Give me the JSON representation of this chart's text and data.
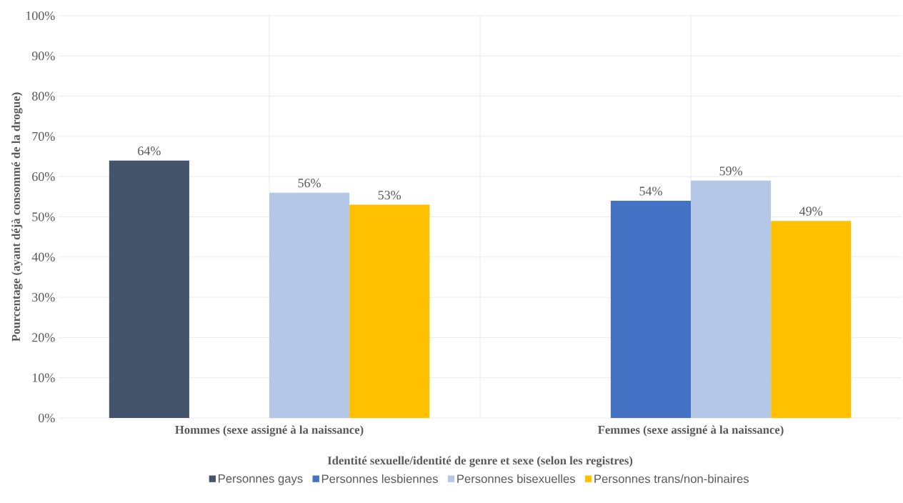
{
  "chart_data": {
    "type": "bar",
    "xlabel": "Identité sexuelle/identité de genre et sexe (selon les registres)",
    "ylabel": "Pourcentage (ayant déjà consommé de la drogue)",
    "categories": [
      "Hommes (sexe assigné à la naissance)",
      "Femmes (sexe assigné à la naissance)"
    ],
    "series": [
      {
        "name": "Personnes gays",
        "color": "#44546a",
        "values": [
          64,
          null
        ],
        "value_labels": [
          "64%",
          null
        ]
      },
      {
        "name": "Personnes lesbiennes",
        "color": "#4472c4",
        "values": [
          null,
          54
        ],
        "value_labels": [
          null,
          "54%"
        ]
      },
      {
        "name": "Personnes bisexuelles",
        "color": "#b4c7e7",
        "values": [
          56,
          59
        ],
        "value_labels": [
          "56%",
          "59%"
        ]
      },
      {
        "name": "Personnes trans/non-binaires",
        "color": "#ffc000",
        "values": [
          53,
          49
        ],
        "value_labels": [
          "53%",
          "49%"
        ]
      }
    ],
    "ylim": [
      0,
      100
    ],
    "yticks": [
      {
        "value": 0,
        "label": "0%"
      },
      {
        "value": 10,
        "label": "10%"
      },
      {
        "value": 20,
        "label": "20%"
      },
      {
        "value": 30,
        "label": "30%"
      },
      {
        "value": 40,
        "label": "40%"
      },
      {
        "value": 50,
        "label": "50%"
      },
      {
        "value": 60,
        "label": "60%"
      },
      {
        "value": 70,
        "label": "70%"
      },
      {
        "value": 80,
        "label": "80%"
      },
      {
        "value": 90,
        "label": "90%"
      },
      {
        "value": 100,
        "label": "100%"
      }
    ],
    "grid": true,
    "legend": "bottom"
  }
}
